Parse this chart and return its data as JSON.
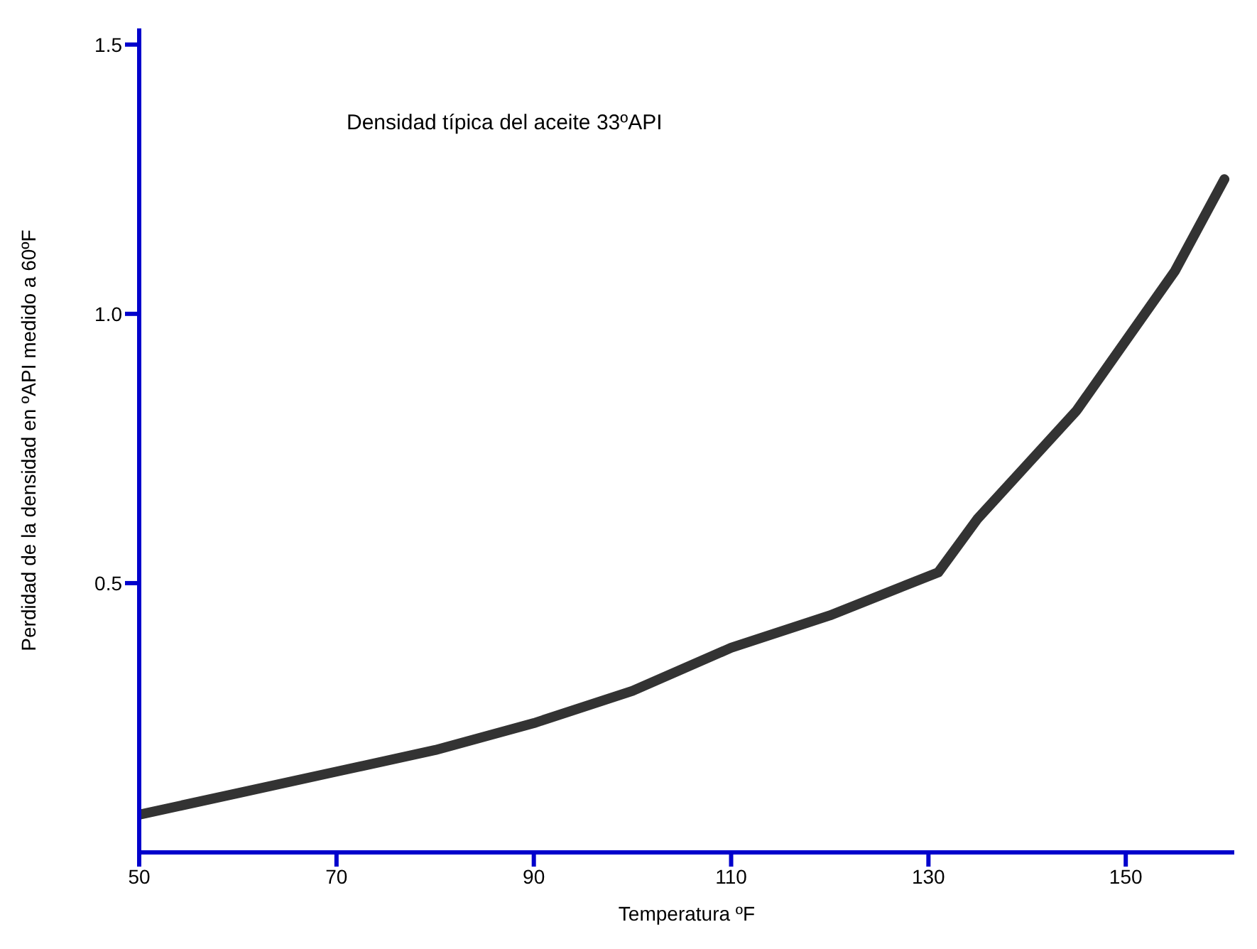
{
  "chart_data": {
    "type": "line",
    "annotations": [
      "Densidad típica del aceite 33ºAPI"
    ],
    "xlabel": "Temperatura    ºF",
    "ylabel": "Perdidad de la densidad en ºAPI medido a 60ºF",
    "x": [
      50,
      60,
      70,
      80,
      90,
      100,
      110,
      120,
      131,
      135,
      140,
      145,
      150,
      155,
      160
    ],
    "series": [
      {
        "color": "#333333",
        "values": [
          0.07,
          0.11,
          0.15,
          0.19,
          0.24,
          0.3,
          0.38,
          0.44,
          0.52,
          0.62,
          0.72,
          0.82,
          0.95,
          1.08,
          1.25
        ]
      }
    ],
    "xlim": [
      50,
      161
    ],
    "xticks": [
      50,
      70,
      90,
      110,
      130,
      150
    ],
    "ylim": [
      0,
      1.53
    ],
    "yticks": [
      {
        "value": 0.5,
        "label": "0.5"
      },
      {
        "value": 1,
        "label": "1.0"
      },
      {
        "value": 1.5,
        "label": "1.5"
      }
    ],
    "grid": false,
    "marker": "none",
    "line_style": "solid"
  }
}
